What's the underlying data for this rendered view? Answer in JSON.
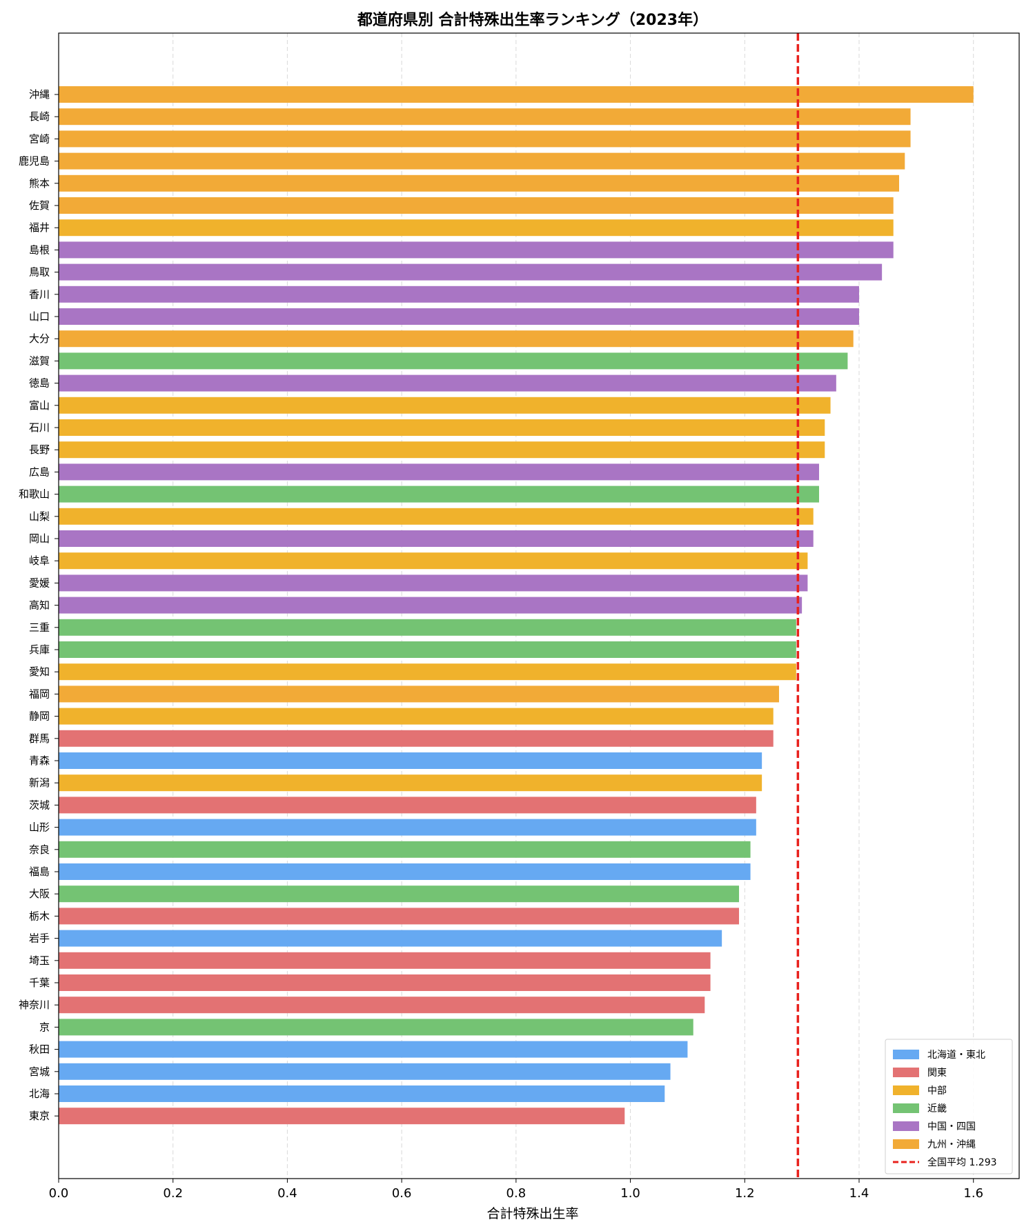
{
  "chart_data": {
    "type": "bar",
    "orientation": "horizontal",
    "title": "都道府県別 合計特殊出生率ランキング（2023年）",
    "xlabel": "合計特殊出生率",
    "ylabel": "",
    "xlim": [
      0,
      1.68
    ],
    "xticks": [
      "0.0",
      "0.2",
      "0.4",
      "0.6",
      "0.8",
      "1.0",
      "1.2",
      "1.4",
      "1.6"
    ],
    "grid": "vertical dashed",
    "legend_position": "bottom-right",
    "region_colors": {
      "北海道・東北": "#66a9f2",
      "関東": "#e37273",
      "中部": "#f0b22c",
      "近畿": "#74c373",
      "中国・四国": "#a975c4",
      "九州・沖縄": "#f2aa37"
    },
    "categories": [
      "沖縄",
      "長崎",
      "宮崎",
      "鹿児島",
      "熊本",
      "佐賀",
      "福井",
      "島根",
      "鳥取",
      "香川",
      "山口",
      "大分",
      "滋賀",
      "徳島",
      "富山",
      "石川",
      "長野",
      "広島",
      "和歌山",
      "山梨",
      "岡山",
      "岐阜",
      "愛媛",
      "高知",
      "三重",
      "兵庫",
      "愛知",
      "福岡",
      "静岡",
      "群馬",
      "青森",
      "新潟",
      "茨城",
      "山形",
      "奈良",
      "福島",
      "大阪",
      "栃木",
      "岩手",
      "埼玉",
      "千葉",
      "神奈川",
      "京",
      "秋田",
      "宮城",
      "北海",
      "東京"
    ],
    "values": [
      1.6,
      1.49,
      1.49,
      1.48,
      1.47,
      1.46,
      1.46,
      1.46,
      1.44,
      1.4,
      1.4,
      1.39,
      1.38,
      1.36,
      1.35,
      1.34,
      1.34,
      1.33,
      1.33,
      1.32,
      1.32,
      1.31,
      1.31,
      1.3,
      1.29,
      1.29,
      1.29,
      1.26,
      1.25,
      1.25,
      1.23,
      1.23,
      1.22,
      1.22,
      1.21,
      1.21,
      1.19,
      1.19,
      1.16,
      1.14,
      1.14,
      1.13,
      1.11,
      1.1,
      1.07,
      1.06,
      0.99
    ],
    "regions": [
      "九州・沖縄",
      "九州・沖縄",
      "九州・沖縄",
      "九州・沖縄",
      "九州・沖縄",
      "九州・沖縄",
      "中部",
      "中国・四国",
      "中国・四国",
      "中国・四国",
      "中国・四国",
      "九州・沖縄",
      "近畿",
      "中国・四国",
      "中部",
      "中部",
      "中部",
      "中国・四国",
      "近畿",
      "中部",
      "中国・四国",
      "中部",
      "中国・四国",
      "中国・四国",
      "近畿",
      "近畿",
      "中部",
      "九州・沖縄",
      "中部",
      "関東",
      "北海道・東北",
      "中部",
      "関東",
      "北海道・東北",
      "近畿",
      "北海道・東北",
      "近畿",
      "関東",
      "北海道・東北",
      "関東",
      "関東",
      "関東",
      "近畿",
      "北海道・東北",
      "北海道・東北",
      "北海道・東北",
      "関東"
    ],
    "legend": [
      {
        "label": "北海道・東北",
        "color": "#66a9f2",
        "kind": "patch"
      },
      {
        "label": "関東",
        "color": "#e37273",
        "kind": "patch"
      },
      {
        "label": "中部",
        "color": "#f0b22c",
        "kind": "patch"
      },
      {
        "label": "近畿",
        "color": "#74c373",
        "kind": "patch"
      },
      {
        "label": "中国・四国",
        "color": "#a975c4",
        "kind": "patch"
      },
      {
        "label": "九州・沖縄",
        "color": "#f2aa37",
        "kind": "patch"
      },
      {
        "label": "全国平均 1.293",
        "color": "#e8211d",
        "kind": "dashed-line"
      }
    ],
    "reference_line": {
      "value": 1.293,
      "color": "#e8211d",
      "style": "dashed"
    }
  }
}
